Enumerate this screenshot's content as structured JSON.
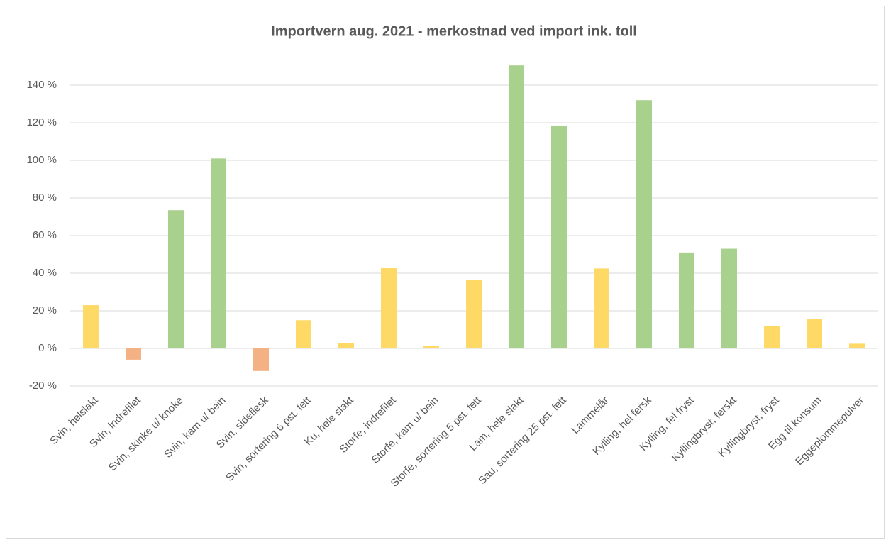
{
  "chart_data": {
    "type": "bar",
    "title": "Importvern aug. 2021 - merkostnad ved import ink. toll",
    "categories": [
      "Svin, helslakt",
      "Svin, indrefilet",
      "Svin, skinke u/ knoke",
      "Svin, kam u/ bein",
      "Svin, sideflesk",
      "Svin, sortering 6 pst. fett",
      "Ku, hele slakt",
      "Storfe, indrefilet",
      "Storfe, kam u/ bein",
      "Storfe, sortering 5 pst. fett",
      "Lam, hele slakt",
      "Sau, sortering 25 pst. fett",
      "Lammelår",
      "Kylling, hel fersk",
      "Kylling, fel fryst",
      "Kyllingbryst, ferskt",
      "Kyllingbryst, fryst",
      "Egg til konsum",
      "Eggeplommepulver"
    ],
    "values": [
      23,
      -6,
      73.5,
      101,
      -12,
      15,
      3,
      43,
      1.5,
      36.5,
      150.5,
      118.5,
      42.5,
      132,
      51,
      53,
      12,
      15.5,
      2.5
    ],
    "colors": [
      "#ffd966",
      "#f4b183",
      "#a9d18e",
      "#a9d18e",
      "#f4b183",
      "#ffd966",
      "#ffd966",
      "#ffd966",
      "#ffd966",
      "#ffd966",
      "#a9d18e",
      "#a9d18e",
      "#ffd966",
      "#a9d18e",
      "#a9d18e",
      "#a9d18e",
      "#ffd966",
      "#ffd966",
      "#ffd966"
    ],
    "ylim": [
      -20,
      160
    ],
    "yticks": [
      {
        "value": -20,
        "label": "-20 %"
      },
      {
        "value": 0,
        "label": "0 %"
      },
      {
        "value": 20,
        "label": "20 %"
      },
      {
        "value": 40,
        "label": "40 %"
      },
      {
        "value": 60,
        "label": "60 %"
      },
      {
        "value": 80,
        "label": "80 %"
      },
      {
        "value": 100,
        "label": "100 %"
      },
      {
        "value": 120,
        "label": "120 %"
      },
      {
        "value": 140,
        "label": "140 %"
      }
    ],
    "grid": true
  }
}
